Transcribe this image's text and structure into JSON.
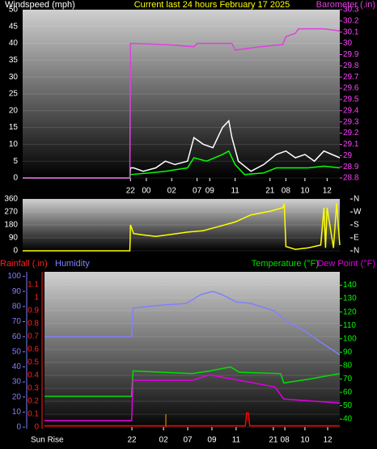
{
  "chart_data": [
    {
      "type": "line",
      "title": "Current last 24 hours February 17 2025",
      "y_label": "Windspeed (mph)",
      "xlim": [
        0,
        100
      ],
      "xticks": [
        {
          "value": 34,
          "label": "22"
        },
        {
          "value": 39,
          "label": "00"
        },
        {
          "value": 47,
          "label": "02"
        },
        {
          "value": 55,
          "label": "07"
        },
        {
          "value": 59,
          "label": "09"
        },
        {
          "value": 67,
          "label": "11"
        },
        {
          "value": 78,
          "label": "21"
        },
        {
          "value": 83,
          "label": "08"
        },
        {
          "value": 89,
          "label": "10"
        },
        {
          "value": 96,
          "label": "12"
        }
      ],
      "ylim": [
        0,
        50
      ],
      "yticks": [
        0,
        5,
        10,
        15,
        20,
        25,
        30,
        35,
        40,
        45,
        50
      ],
      "y2lim": [
        28.8,
        30.3
      ],
      "y2ticks": [
        28.8,
        28.9,
        29,
        29.1,
        29.2,
        29.3,
        29.4,
        29.5,
        29.6,
        29.7,
        29.8,
        29.9,
        30,
        30.1,
        30.2,
        30.3
      ],
      "grid": true,
      "series": [
        {
          "color": "#ffffff",
          "x": [
            0,
            33.8,
            34,
            35,
            38,
            42,
            45,
            48,
            52,
            54,
            57,
            60,
            63,
            65,
            66,
            68,
            72,
            76,
            80,
            83,
            86,
            89,
            92,
            95,
            100
          ],
          "values": [
            0,
            0,
            3,
            3,
            2,
            3,
            5,
            4,
            5,
            12,
            10,
            9,
            15,
            17,
            12,
            5,
            2,
            4,
            7,
            8,
            6,
            7,
            5,
            8,
            6
          ]
        },
        {
          "color": "#00ff00",
          "x": [
            0,
            33.8,
            34,
            40,
            45,
            52,
            54,
            58,
            63,
            65,
            67,
            70,
            76,
            80,
            85,
            90,
            95,
            100
          ],
          "values": [
            0,
            0,
            1,
            1.5,
            2,
            3,
            6,
            5,
            7,
            8,
            4,
            1,
            1.5,
            3,
            3,
            3,
            3.5,
            3
          ]
        },
        {
          "name": "Barometer (.in)",
          "color": "#e040e0",
          "axis": "y2",
          "x": [
            0,
            33.8,
            34,
            45,
            54,
            55,
            66,
            67,
            75,
            82,
            83,
            86,
            87,
            95,
            100
          ],
          "values": [
            28.8,
            28.8,
            30,
            29.99,
            29.97,
            30,
            30,
            29.94,
            29.97,
            29.99,
            30.06,
            30.09,
            30.13,
            30.13,
            30.11
          ]
        }
      ]
    },
    {
      "type": "line",
      "xlim": [
        0,
        100
      ],
      "ylim": [
        0,
        360
      ],
      "yticks": [
        0,
        90,
        180,
        270,
        360
      ],
      "y2lim": [
        0,
        360
      ],
      "y2ticks": [
        {
          "value": 0,
          "label": "N"
        },
        {
          "value": 90,
          "label": "E"
        },
        {
          "value": 180,
          "label": "S"
        },
        {
          "value": 270,
          "label": "W"
        },
        {
          "value": 360,
          "label": "N"
        }
      ],
      "grid": true,
      "series": [
        {
          "color": "#ffff00",
          "x": [
            0,
            33.8,
            34,
            35,
            38,
            42,
            47,
            52,
            57,
            62,
            67,
            72,
            78,
            82,
            82.5,
            83,
            86,
            90,
            94,
            95,
            95.5,
            96,
            98,
            99,
            100
          ],
          "values": [
            0,
            0,
            180,
            120,
            110,
            100,
            115,
            130,
            140,
            170,
            200,
            250,
            275,
            300,
            320,
            30,
            10,
            20,
            40,
            300,
            20,
            300,
            20,
            330,
            40
          ]
        }
      ]
    },
    {
      "type": "line",
      "annotation": "Sun Rise",
      "xlim": [
        0,
        100
      ],
      "xticks": [
        {
          "value": 29.6,
          "label": "22"
        },
        {
          "value": 40.3,
          "label": "02"
        },
        {
          "value": 48.5,
          "label": "07"
        },
        {
          "value": 56.7,
          "label": "09"
        },
        {
          "value": 64.9,
          "label": "11"
        },
        {
          "value": 77.5,
          "label": "21"
        },
        {
          "value": 81.4,
          "label": "08"
        },
        {
          "value": 88.2,
          "label": "10"
        },
        {
          "value": 95.9,
          "label": "12"
        }
      ],
      "ylim": [
        0,
        1.2
      ],
      "yticks": [
        0,
        0.1,
        0.2,
        0.3,
        0.4,
        0.5,
        0.6,
        0.7,
        0.8,
        0.9,
        1,
        1.1
      ],
      "y2lim": [
        34,
        150
      ],
      "y2ticks": [
        40,
        50,
        60,
        70,
        80,
        90,
        100,
        110,
        120,
        130,
        140
      ],
      "y3lim": [
        0,
        103
      ],
      "y3ticks": [
        0,
        10,
        20,
        30,
        40,
        50,
        60,
        70,
        80,
        90,
        100
      ],
      "grid": true,
      "series": [
        {
          "name": "Rainfall (.in)",
          "color": "#ff0000",
          "axis": "y",
          "x": [
            0,
            68,
            68.5,
            69,
            69.5,
            100
          ],
          "values": [
            0.01,
            0.01,
            0.11,
            0.11,
            0.01,
            0.01
          ]
        },
        {
          "name": "Humidity",
          "color": "#8080ff",
          "axis": "y3",
          "x": [
            0,
            29.5,
            30,
            40,
            48,
            53,
            57,
            60,
            65,
            70,
            78,
            82,
            88,
            93,
            100
          ],
          "values": [
            60,
            60,
            79,
            81,
            82,
            88,
            90,
            88,
            83,
            82,
            77,
            70,
            64,
            57,
            48
          ]
        },
        {
          "name": "Temperature (°F)",
          "color": "#00e000",
          "axis": "y2",
          "x": [
            0,
            29.5,
            30,
            50,
            56,
            63,
            66,
            80,
            81,
            90,
            100
          ],
          "values": [
            57,
            57,
            76,
            74,
            76,
            79,
            75,
            74,
            67,
            70,
            74
          ]
        },
        {
          "name": "Dew Point (°F)",
          "color": "#e000e0",
          "axis": "y2",
          "x": [
            0,
            29.5,
            30,
            50,
            56,
            66,
            78,
            81,
            100
          ],
          "values": [
            39,
            39,
            69,
            69,
            73,
            69,
            64,
            55,
            52
          ]
        }
      ]
    }
  ]
}
